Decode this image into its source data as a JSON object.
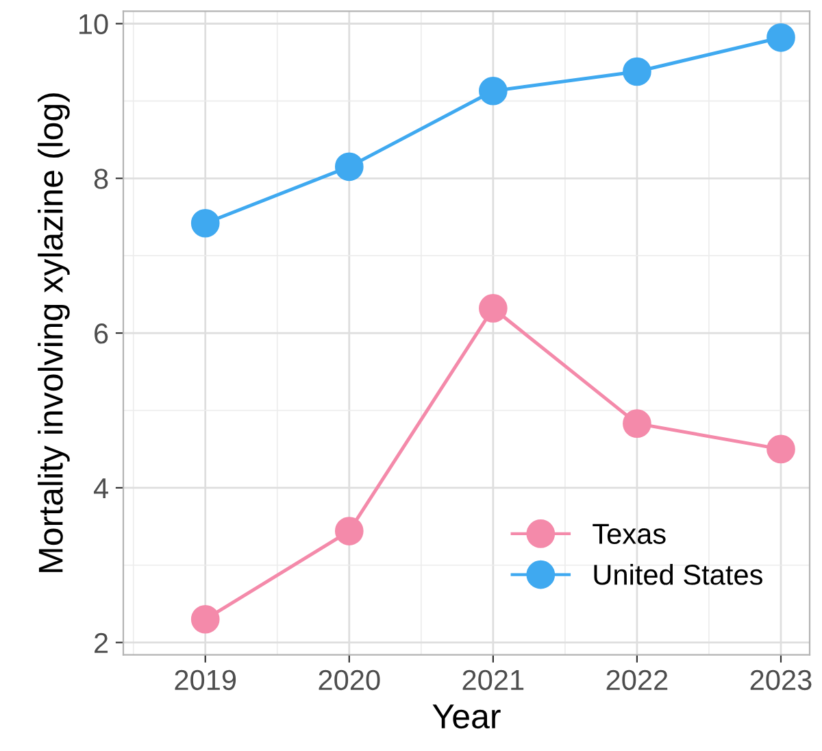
{
  "chart_data": {
    "type": "line",
    "xlabel": "Year",
    "ylabel": "Mortality involving xylazine (log)",
    "x": [
      2019,
      2020,
      2021,
      2022,
      2023
    ],
    "series": [
      {
        "name": "Texas",
        "color": "#f48aaa",
        "values": [
          2.3,
          3.44,
          6.32,
          4.83,
          4.5
        ]
      },
      {
        "name": "United States",
        "color": "#3fa9f0",
        "values": [
          7.42,
          8.15,
          9.13,
          9.38,
          9.82
        ]
      }
    ],
    "xlim": [
      2018.43,
      2023.2
    ],
    "xticks": [
      2019,
      2020,
      2021,
      2022,
      2023
    ],
    "ylim": [
      1.84,
      10.16
    ],
    "yticks": [
      2,
      4,
      6,
      8,
      10
    ],
    "grid": true,
    "legend": "bottom right",
    "marker": "circle",
    "line_style": "solid"
  }
}
